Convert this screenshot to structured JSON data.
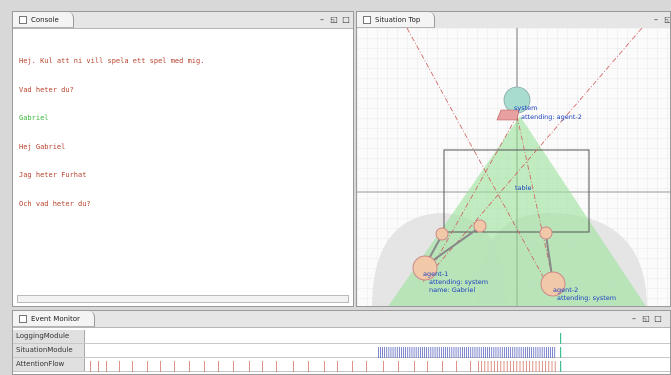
{
  "console": {
    "tab_label": "Console",
    "lines": [
      {
        "text": "Hej. Kul att ni vill spela ett spel med mig.",
        "color": "red"
      },
      {
        "text": "Vad heter du?",
        "color": "red"
      },
      {
        "text": "Gabriel",
        "color": "green"
      },
      {
        "text": "Hej Gabriel",
        "color": "red"
      },
      {
        "text": "Jag heter Furhat",
        "color": "red"
      },
      {
        "text": "Och vad heter du?",
        "color": "red"
      }
    ]
  },
  "situation": {
    "tab_label": "Situation Top",
    "system_label": "system",
    "system_attending": "attending: agent-2",
    "table_label": "table",
    "agent1": {
      "name": "agent-1",
      "attending": "attending: system",
      "name_line": "name: Gabriel"
    },
    "agent2": {
      "name": "agent-2",
      "attending": "attending: system"
    }
  },
  "event_monitor": {
    "tab_label": "Event Monitor",
    "rows": [
      {
        "label": "LoggingModule"
      },
      {
        "label": "SituationModule"
      },
      {
        "label": "AttentionFlow"
      }
    ]
  },
  "window_buttons": {
    "minimize": "–",
    "restore": "◱",
    "maximize": "□"
  },
  "colors": {
    "console_red": "#b8432c",
    "console_green": "#3cb83c",
    "agent_circle": "#f2c9a8",
    "system_circle": "#a8dccf",
    "attention_cone": "#9be39b",
    "event_bar_blue": "#4a56b8",
    "event_bar_red": "#d47a6a",
    "event_marker": "#3fbf8f"
  }
}
